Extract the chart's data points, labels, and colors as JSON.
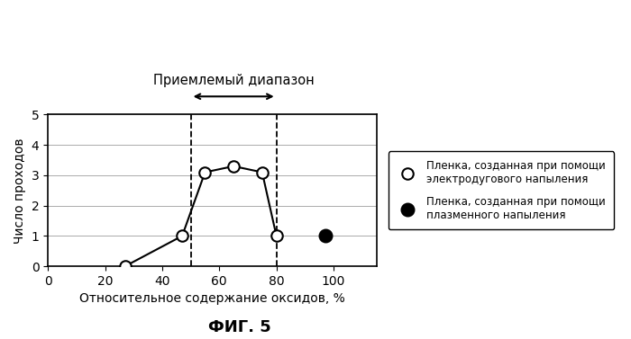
{
  "open_x": [
    27,
    47,
    55,
    65,
    75,
    80
  ],
  "open_y": [
    0,
    1,
    3.1,
    3.3,
    3.1,
    1
  ],
  "filled_x": [
    97
  ],
  "filled_y": [
    1
  ],
  "dashed_x1": 50,
  "dashed_x2": 80,
  "xlim": [
    0,
    115
  ],
  "ylim": [
    0,
    5
  ],
  "xticks": [
    0,
    20,
    40,
    60,
    80,
    100
  ],
  "yticks": [
    0,
    1,
    2,
    3,
    4,
    5
  ],
  "xlabel": "Относительное содержание оксидов, %",
  "ylabel": "Число проходов",
  "range_label": "Приемлемый диапазон",
  "legend_open": "Пленка, созданная при помощи\nэлектродугового напыления",
  "legend_filled": "Пленка, созданная при помощи\nплазменного напыления",
  "fig_label": "ФИГ. 5",
  "bg_color": "#ffffff",
  "line_color": "#000000",
  "marker_open_color": "#ffffff",
  "marker_filled_color": "#000000"
}
